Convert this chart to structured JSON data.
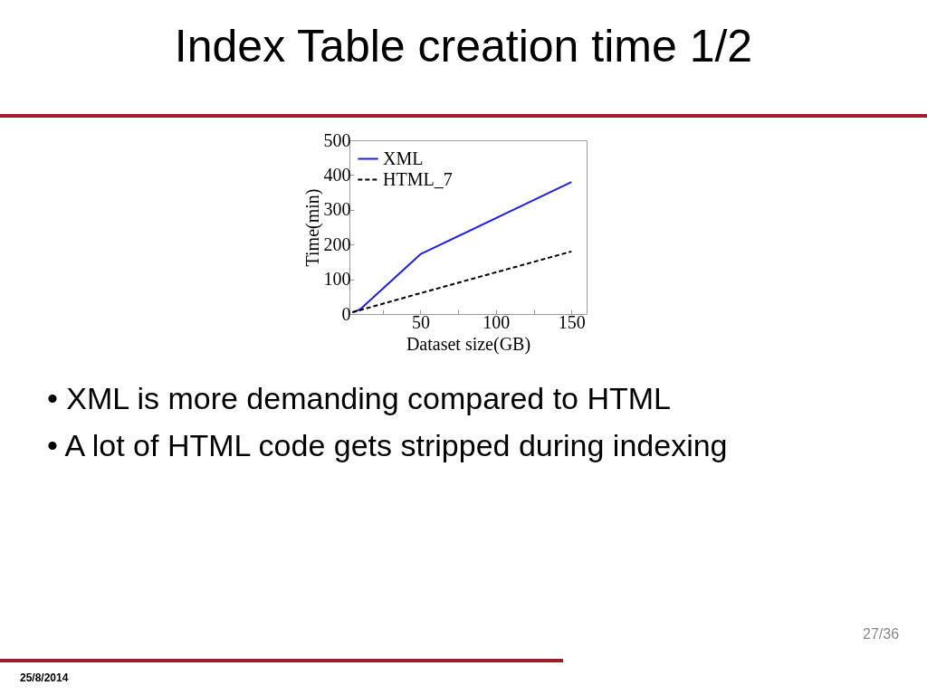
{
  "chart_data": {
    "type": "line",
    "title": "Index Table creation time 1/2",
    "xlabel": "Dataset size(GB)",
    "ylabel": "Time(min)",
    "xlim": [
      3,
      160
    ],
    "xticks": [
      {
        "value": 25,
        "label": null
      },
      50,
      {
        "value": 75,
        "label": null
      },
      100,
      {
        "value": 125,
        "label": null
      },
      150
    ],
    "ylim": [
      0,
      500
    ],
    "yticks": [
      0,
      100,
      200,
      300,
      400,
      500
    ],
    "grid": false,
    "legend": "top left",
    "series": [
      {
        "name": "XML",
        "color": "#1f1fe0",
        "line_style": "solid",
        "x": [
          5,
          10,
          50,
          150
        ],
        "values": [
          5,
          13,
          172,
          380
        ]
      },
      {
        "name": "HTML_7",
        "color": "#000000",
        "line_style": "dashed",
        "x": [
          5,
          50,
          150
        ],
        "values": [
          5,
          60,
          180
        ]
      }
    ],
    "annotations": [
      "• XML is more demanding compared to HTML",
      "• A lot of HTML code gets stripped during indexing",
      "27/36",
      "25/8/2014"
    ]
  }
}
